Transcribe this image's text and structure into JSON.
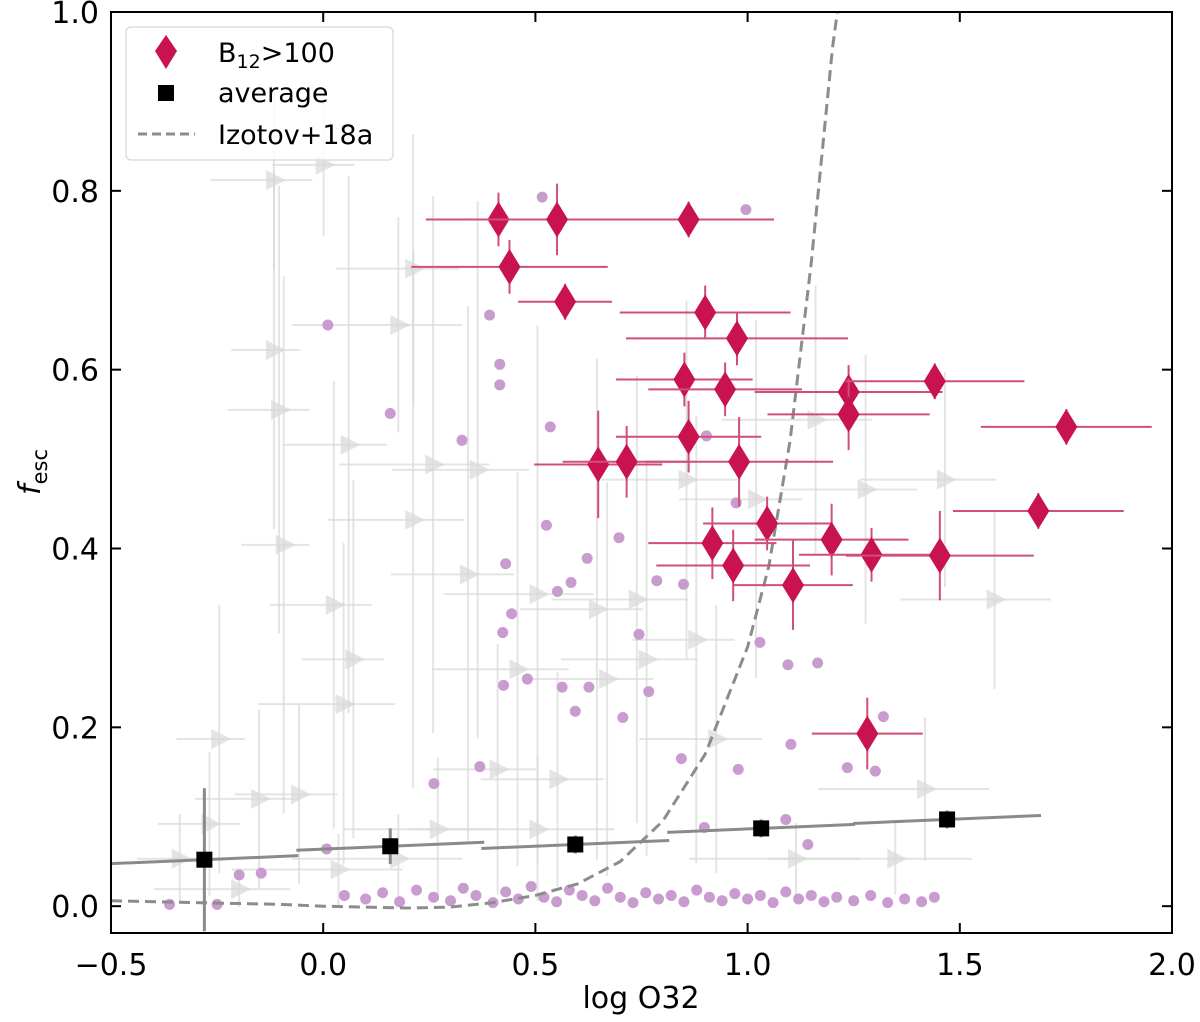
{
  "chart_data": {
    "type": "scatter",
    "xlabel": "log O32",
    "ylabel": {
      "main": "f",
      "sub": "esc"
    },
    "xlim": [
      -0.5,
      2.0
    ],
    "ylim": [
      -0.03,
      1.0
    ],
    "xticks": [
      "−0.5",
      "0.0",
      "0.5",
      "1.0",
      "1.5",
      "2.0"
    ],
    "xtick_values": [
      -0.5,
      0.0,
      0.5,
      1.0,
      1.5,
      2.0
    ],
    "yticks": [
      "0.0",
      "0.2",
      "0.4",
      "0.6",
      "0.8",
      "1.0"
    ],
    "ytick_values": [
      0.0,
      0.2,
      0.4,
      0.6,
      0.8,
      1.0
    ],
    "grid": false,
    "legend": {
      "placement": "top-left",
      "entries": [
        {
          "label_main": "B",
          "label_sub": "12",
          "label_rest": ">100",
          "marker": "diamond"
        },
        {
          "label": "average",
          "marker": "square"
        },
        {
          "label": "Izotov+18a",
          "marker": "dashed-line"
        }
      ]
    },
    "colors": {
      "highlight": "#c8134f",
      "highlight_err": "#cf4f78",
      "average": "#000000",
      "avg_err": "#8a8a8a",
      "model": "#8c8c8c",
      "background_dots": "#c99ccf",
      "limits": "#d9d9d9"
    },
    "series": [
      {
        "name": "B12>100",
        "marker": "diamond",
        "points": [
          [
            0.413,
            0.768,
            0.17,
            0.03
          ],
          [
            0.551,
            0.768,
            0.21,
            0.04
          ],
          [
            0.861,
            0.768,
            0.2,
            0.02
          ],
          [
            0.439,
            0.715,
            0.23,
            0.03
          ],
          [
            0.57,
            0.676,
            0.11,
            0.02
          ],
          [
            0.9,
            0.664,
            0.2,
            0.03
          ],
          [
            0.975,
            0.635,
            0.26,
            0.03
          ],
          [
            0.851,
            0.589,
            0.16,
            0.03
          ],
          [
            0.947,
            0.578,
            0.18,
            0.03
          ],
          [
            1.238,
            0.575,
            0.22,
            0.03
          ],
          [
            1.441,
            0.587,
            0.21,
            0.02
          ],
          [
            1.751,
            0.536,
            0.2,
            0.02
          ],
          [
            1.238,
            0.55,
            0.19,
            0.04
          ],
          [
            0.861,
            0.525,
            0.17,
            0.04
          ],
          [
            0.648,
            0.494,
            0.15,
            0.06
          ],
          [
            0.715,
            0.497,
            0.15,
            0.04
          ],
          [
            0.98,
            0.497,
            0.22,
            0.05
          ],
          [
            1.685,
            0.442,
            0.2,
            0.02
          ],
          [
            1.046,
            0.428,
            0.15,
            0.03
          ],
          [
            0.917,
            0.406,
            0.15,
            0.04
          ],
          [
            1.198,
            0.41,
            0.18,
            0.04
          ],
          [
            1.292,
            0.393,
            0.17,
            0.03
          ],
          [
            1.453,
            0.392,
            0.22,
            0.05
          ],
          [
            0.966,
            0.381,
            0.18,
            0.04
          ],
          [
            1.107,
            0.359,
            0.14,
            0.05
          ],
          [
            1.282,
            0.193,
            0.13,
            0.04
          ]
        ]
      },
      {
        "name": "average",
        "marker": "square",
        "points": [
          [
            -0.28,
            0.052,
            0.22,
            0.08
          ],
          [
            0.158,
            0.067,
            0.22,
            0.02
          ],
          [
            0.594,
            0.069,
            0.22,
            0.01
          ],
          [
            1.032,
            0.087,
            0.22,
            0.01
          ],
          [
            1.47,
            0.097,
            0.22,
            0.01
          ]
        ]
      },
      {
        "name": "Izotov+18a",
        "marker": "dashed-line",
        "x": [
          -0.5,
          -0.3,
          -0.1,
          0.0,
          0.1,
          0.2,
          0.3,
          0.4,
          0.5,
          0.6,
          0.7,
          0.8,
          0.9,
          1.0,
          1.05,
          1.1,
          1.15,
          1.2,
          1.22
        ],
        "y": [
          0.006,
          0.004,
          0.002,
          0.0,
          -0.001,
          -0.002,
          -0.001,
          0.004,
          0.012,
          0.025,
          0.05,
          0.095,
          0.17,
          0.29,
          0.38,
          0.52,
          0.72,
          0.96,
          1.03
        ]
      },
      {
        "marker": "circle",
        "points": [
          [
            0.516,
            0.793
          ],
          [
            0.996,
            0.779
          ],
          [
            0.011,
            0.65
          ],
          [
            0.392,
            0.661
          ],
          [
            0.416,
            0.606
          ],
          [
            0.416,
            0.583
          ],
          [
            0.158,
            0.551
          ],
          [
            0.327,
            0.521
          ],
          [
            0.535,
            0.536
          ],
          [
            0.526,
            0.426
          ],
          [
            0.697,
            0.412
          ],
          [
            0.43,
            0.383
          ],
          [
            0.584,
            0.362
          ],
          [
            0.552,
            0.352
          ],
          [
            0.622,
            0.389
          ],
          [
            0.444,
            0.327
          ],
          [
            0.786,
            0.364
          ],
          [
            0.744,
            0.304
          ],
          [
            0.849,
            0.36
          ],
          [
            0.423,
            0.306
          ],
          [
            0.425,
            0.247
          ],
          [
            0.563,
            0.245
          ],
          [
            0.626,
            0.245
          ],
          [
            0.481,
            0.254
          ],
          [
            0.594,
            0.218
          ],
          [
            0.706,
            0.211
          ],
          [
            0.767,
            0.24
          ],
          [
            1.029,
            0.295
          ],
          [
            0.844,
            0.165
          ],
          [
            0.978,
            0.153
          ],
          [
            1.095,
            0.27
          ],
          [
            1.165,
            0.272
          ],
          [
            0.898,
            0.088
          ],
          [
            1.09,
            0.097
          ],
          [
            1.142,
            0.069
          ],
          [
            1.235,
            0.155
          ],
          [
            1.32,
            0.212
          ],
          [
            1.301,
            0.151
          ],
          [
            1.102,
            0.181
          ],
          [
            0.261,
            0.137
          ],
          [
            0.369,
            0.156
          ],
          [
            0.008,
            0.064
          ],
          [
            -0.198,
            0.035
          ],
          [
            -0.146,
            0.037
          ],
          [
            -0.362,
            0.002
          ],
          [
            -0.25,
            0.002
          ],
          [
            0.903,
            0.526
          ],
          [
            0.973,
            0.451
          ],
          [
            0.05,
            0.012
          ],
          [
            0.1,
            0.008
          ],
          [
            0.14,
            0.015
          ],
          [
            0.18,
            0.005
          ],
          [
            0.22,
            0.018
          ],
          [
            0.26,
            0.01
          ],
          [
            0.3,
            0.006
          ],
          [
            0.33,
            0.02
          ],
          [
            0.36,
            0.012
          ],
          [
            0.4,
            0.004
          ],
          [
            0.43,
            0.016
          ],
          [
            0.46,
            0.008
          ],
          [
            0.49,
            0.022
          ],
          [
            0.52,
            0.01
          ],
          [
            0.55,
            0.005
          ],
          [
            0.58,
            0.018
          ],
          [
            0.61,
            0.012
          ],
          [
            0.64,
            0.006
          ],
          [
            0.67,
            0.02
          ],
          [
            0.7,
            0.01
          ],
          [
            0.73,
            0.004
          ],
          [
            0.76,
            0.015
          ],
          [
            0.79,
            0.008
          ],
          [
            0.82,
            0.012
          ],
          [
            0.85,
            0.005
          ],
          [
            0.88,
            0.018
          ],
          [
            0.91,
            0.01
          ],
          [
            0.94,
            0.006
          ],
          [
            0.97,
            0.014
          ],
          [
            1.0,
            0.008
          ],
          [
            1.03,
            0.012
          ],
          [
            1.06,
            0.004
          ],
          [
            1.09,
            0.016
          ],
          [
            1.12,
            0.008
          ],
          [
            1.15,
            0.012
          ],
          [
            1.18,
            0.005
          ],
          [
            1.21,
            0.01
          ],
          [
            1.25,
            0.006
          ],
          [
            1.29,
            0.012
          ],
          [
            1.33,
            0.004
          ],
          [
            1.37,
            0.008
          ],
          [
            1.41,
            0.005
          ],
          [
            1.44,
            0.01
          ]
        ]
      },
      {
        "marker": "right-triangle",
        "points": [
          [
            -0.116,
            0.812,
            0.15,
            0.1
          ],
          [
            0.001,
            0.829,
            0.12,
            0.08
          ],
          [
            0.212,
            0.713,
            0.18,
            0.15
          ],
          [
            0.177,
            0.65,
            0.25,
            0.12
          ],
          [
            -0.116,
            0.622,
            0.1,
            0.2
          ],
          [
            -0.104,
            0.555,
            0.12,
            0.25
          ],
          [
            -0.093,
            0.404,
            0.1,
            0.3
          ],
          [
            0.025,
            0.337,
            0.15,
            0.25
          ],
          [
            0.071,
            0.276,
            0.12,
            0.2
          ],
          [
            0.048,
            0.226,
            0.2,
            0.18
          ],
          [
            -0.245,
            0.187,
            0.1,
            0.15
          ],
          [
            -0.338,
            0.053,
            0.1,
            0.05
          ],
          [
            -0.268,
            0.092,
            0.12,
            0.08
          ],
          [
            -0.151,
            0.12,
            0.15,
            0.1
          ],
          [
            -0.057,
            0.125,
            0.15,
            0.1
          ],
          [
            0.212,
            0.432,
            0.2,
            0.3
          ],
          [
            0.259,
            0.494,
            0.22,
            0.3
          ],
          [
            0.341,
            0.371,
            0.18,
            0.3
          ],
          [
            0.458,
            0.265,
            0.2,
            0.22
          ],
          [
            0.645,
            0.332,
            0.18,
            0.28
          ],
          [
            0.739,
            0.343,
            0.2,
            0.25
          ],
          [
            0.411,
            0.153,
            0.15,
            0.14
          ],
          [
            0.552,
            0.142,
            0.18,
            0.12
          ],
          [
            0.762,
            0.276,
            0.2,
            0.22
          ],
          [
            0.879,
            0.298,
            0.15,
            0.25
          ],
          [
            0.926,
            0.187,
            0.18,
            0.15
          ],
          [
            0.177,
            0.053,
            0.25,
            0.05
          ],
          [
            0.27,
            0.086,
            0.22,
            0.08
          ],
          [
            1.114,
            0.053,
            0.25,
            0.04
          ],
          [
            1.348,
            0.053,
            0.3,
            0.04
          ],
          [
            0.06,
            0.516,
            0.15,
            0.3
          ],
          [
            0.364,
            0.488,
            0.2,
            0.3
          ],
          [
            0.505,
            0.349,
            0.22,
            0.3
          ],
          [
            0.669,
            0.254,
            0.18,
            0.22
          ],
          [
            0.856,
            0.477,
            0.2,
            0.2
          ],
          [
            1.02,
            0.455,
            0.18,
            0.2
          ],
          [
            1.16,
            0.544,
            0.22,
            0.15
          ],
          [
            1.278,
            0.466,
            0.2,
            0.15
          ],
          [
            1.465,
            0.477,
            0.2,
            0.12
          ],
          [
            1.582,
            0.343,
            0.22,
            0.1
          ],
          [
            1.418,
            0.131,
            0.25,
            0.08
          ],
          [
            -0.198,
            0.019,
            0.2,
            0.02
          ],
          [
            0.036,
            0.041,
            0.25,
            0.04
          ],
          [
            0.505,
            0.086,
            0.3,
            0.08
          ]
        ]
      }
    ]
  }
}
